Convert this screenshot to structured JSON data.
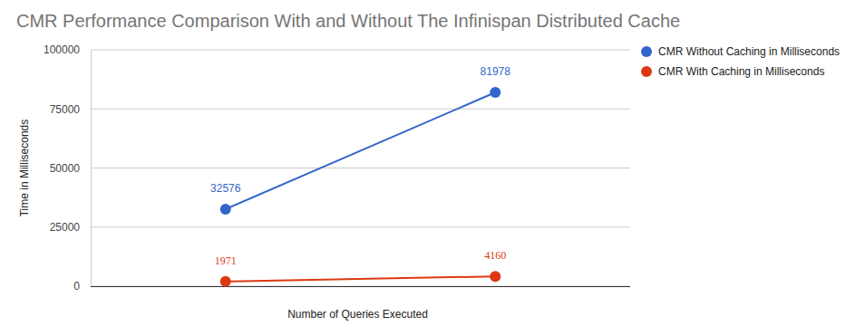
{
  "chart_data": {
    "type": "line",
    "title": "CMR Performance Comparison With and Without The Infinispan Distributed Cache",
    "x_label": "Number of Queries Executed",
    "y_label": "Time in Milliseconds",
    "categories": [
      null,
      null
    ],
    "series": [
      {
        "name": "CMR Without Caching in Milliseconds",
        "color": "#3366cc",
        "values": [
          32576,
          81978
        ]
      },
      {
        "name": "CMR With Caching in Milliseconds",
        "color": "#dc3912",
        "values": [
          1971,
          4160
        ]
      }
    ],
    "ylim": [
      0,
      100000
    ],
    "yticks": [
      0,
      25000,
      50000,
      75000,
      100000
    ],
    "grid": true,
    "legend": "right",
    "data_labels": true,
    "tick_labels": "y",
    "marker": "circle"
  }
}
